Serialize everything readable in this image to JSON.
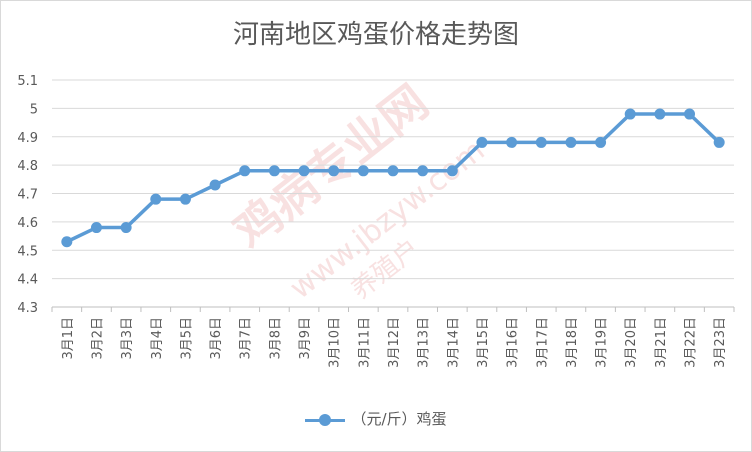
{
  "chart_data": {
    "type": "line",
    "title": "河南地区鸡蛋价格走势图",
    "categories": [
      "3月1日",
      "3月2日",
      "3月3日",
      "3月4日",
      "3月5日",
      "3月6日",
      "3月7日",
      "3月8日",
      "3月9日",
      "3月10日",
      "3月11日",
      "3月12日",
      "3月13日",
      "3月14日",
      "3月15日",
      "3月16日",
      "3月17日",
      "3月18日",
      "3月19日",
      "3月20日",
      "3月21日",
      "3月22日",
      "3月23日"
    ],
    "series": [
      {
        "name": "（元/斤）鸡蛋",
        "color": "#5b9bd5",
        "values": [
          4.53,
          4.58,
          4.58,
          4.68,
          4.68,
          4.73,
          4.78,
          4.78,
          4.78,
          4.78,
          4.78,
          4.78,
          4.78,
          4.78,
          4.88,
          4.88,
          4.88,
          4.88,
          4.88,
          4.98,
          4.98,
          4.98,
          4.88
        ]
      }
    ],
    "ylim": [
      4.3,
      5.1
    ],
    "yticks": [
      "4.3",
      "4.4",
      "4.5",
      "4.6",
      "4.7",
      "4.8",
      "4.9",
      "5",
      "5.1"
    ],
    "grid": true,
    "legend_position": "bottom",
    "watermark": [
      "鸡病专业网",
      "www.jbzyw.com",
      "养殖户"
    ]
  }
}
